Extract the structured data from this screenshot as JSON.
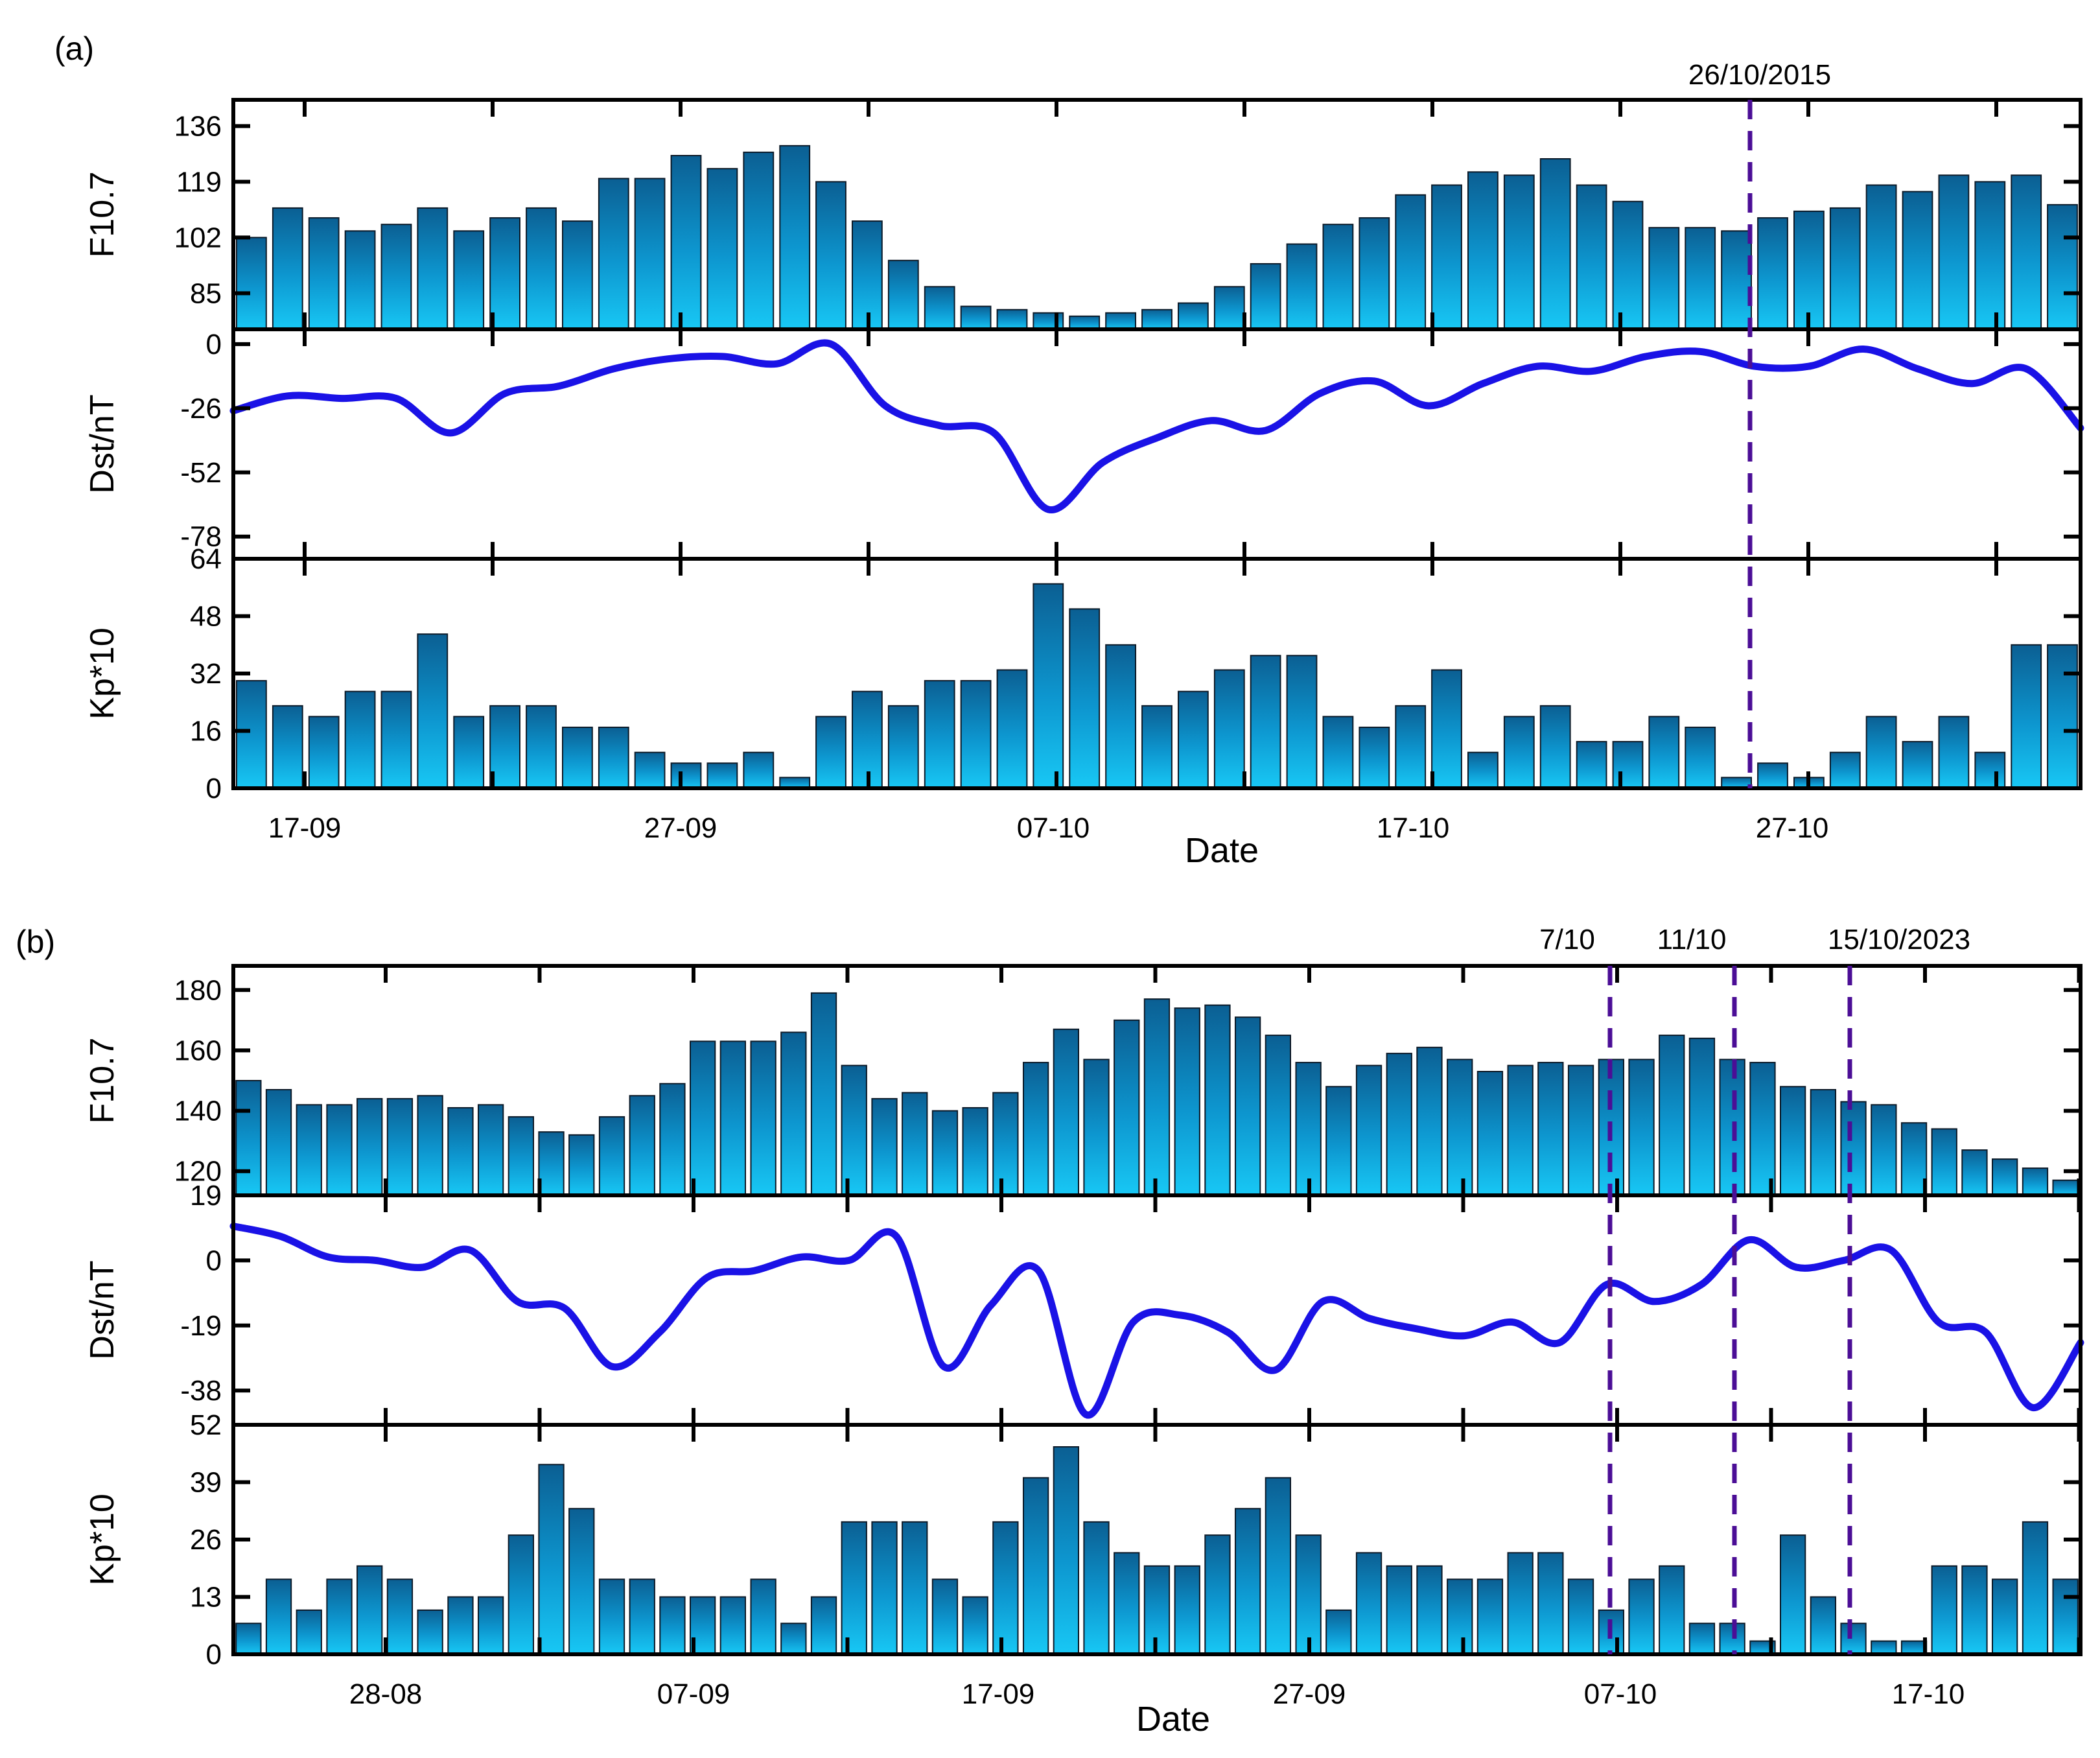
{
  "chart_data": [
    {
      "id": "a",
      "panel_label": "(a)",
      "type": "bar+line",
      "xlabel": "Date",
      "x_tick_labels": [
        "17-09",
        "27-09",
        "07-10",
        "17-10",
        "27-10"
      ],
      "event_labels": [
        "26/10/2015"
      ],
      "subplots": [
        {
          "name": "f107",
          "type": "bar",
          "ylabel": "F10.7",
          "ylim": [
            74,
            144
          ],
          "yticks": [
            85,
            102,
            119,
            136
          ],
          "values": [
            102,
            111,
            108,
            104,
            106,
            111,
            104,
            108,
            111,
            107,
            120,
            120,
            127,
            123,
            128,
            130,
            119,
            107,
            95,
            87,
            81,
            80,
            79,
            78,
            79,
            80,
            82,
            87,
            94,
            100,
            106,
            108,
            115,
            118,
            122,
            121,
            126,
            118,
            113,
            105,
            105,
            104,
            108,
            110,
            111,
            118,
            116,
            121,
            119,
            121,
            112
          ]
        },
        {
          "name": "dst",
          "type": "line",
          "ylabel": "Dst/nT",
          "ylim": [
            -87,
            6
          ],
          "yticks": [
            0,
            -26,
            -52,
            -78
          ],
          "values": [
            -27,
            -21,
            -22,
            -22,
            -36,
            -20,
            -17,
            -10,
            -6,
            -5,
            -8,
            0,
            -25,
            -33,
            -36,
            -67,
            -48,
            -38,
            -31,
            -35,
            -20,
            -15,
            -25,
            -16,
            -9,
            -11,
            -5,
            -3,
            -9,
            -9,
            -2,
            -10,
            -16,
            -10,
            -34
          ]
        },
        {
          "name": "kp",
          "type": "bar",
          "ylabel": "Kp*10",
          "ylim": [
            0,
            64
          ],
          "yticks": [
            0,
            16,
            32,
            48,
            64
          ],
          "values": [
            30,
            23,
            20,
            27,
            27,
            43,
            20,
            23,
            23,
            17,
            17,
            10,
            7,
            7,
            10,
            3,
            20,
            27,
            23,
            30,
            30,
            33,
            57,
            50,
            40,
            23,
            27,
            33,
            37,
            37,
            20,
            17,
            23,
            33,
            10,
            20,
            23,
            13,
            13,
            20,
            17,
            3,
            7,
            3,
            10,
            20,
            13,
            20,
            10,
            40,
            40
          ]
        }
      ]
    },
    {
      "id": "b",
      "panel_label": "(b)",
      "type": "bar+line",
      "xlabel": "Date",
      "x_tick_labels": [
        "28-08",
        "07-09",
        "17-09",
        "27-09",
        "07-10",
        "17-10"
      ],
      "event_labels": [
        "7/10",
        "11/10",
        "15/10/2023"
      ],
      "subplots": [
        {
          "name": "f107",
          "type": "bar",
          "ylabel": "F10.7",
          "ylim": [
            112,
            188
          ],
          "yticks": [
            120,
            140,
            160,
            180
          ],
          "values": [
            150,
            147,
            142,
            142,
            144,
            144,
            145,
            141,
            142,
            138,
            133,
            132,
            138,
            145,
            149,
            163,
            163,
            163,
            166,
            179,
            155,
            144,
            146,
            140,
            141,
            146,
            156,
            167,
            157,
            170,
            177,
            174,
            175,
            171,
            165,
            156,
            148,
            155,
            159,
            161,
            157,
            153,
            155,
            156,
            155,
            157,
            157,
            165,
            164,
            157,
            156,
            148,
            147,
            143,
            142,
            136,
            134,
            127,
            124,
            121,
            117
          ]
        },
        {
          "name": "dst",
          "type": "line",
          "ylabel": "Dst/nT",
          "ylim": [
            -48,
            19
          ],
          "yticks": [
            19,
            0,
            -19,
            -38
          ],
          "values": [
            10,
            7,
            1,
            0,
            -2,
            3,
            -12,
            -14,
            -31,
            -21,
            -5,
            -3,
            1,
            0,
            7,
            -31,
            -13,
            -3,
            -45,
            -18,
            -16,
            -21,
            -32,
            -12,
            -17,
            -20,
            -22,
            -18,
            -24,
            -7,
            -12,
            -7,
            6,
            -2,
            0,
            3,
            -18,
            -21,
            -43,
            -24
          ]
        },
        {
          "name": "kp",
          "type": "bar",
          "ylabel": "Kp*10",
          "ylim": [
            0,
            52
          ],
          "yticks": [
            0,
            13,
            26,
            39,
            52
          ],
          "values": [
            7,
            17,
            10,
            17,
            20,
            17,
            10,
            13,
            13,
            27,
            43,
            33,
            17,
            17,
            13,
            13,
            13,
            17,
            7,
            13,
            30,
            30,
            30,
            17,
            13,
            30,
            40,
            47,
            30,
            23,
            20,
            20,
            27,
            33,
            40,
            27,
            10,
            23,
            20,
            20,
            17,
            17,
            23,
            23,
            17,
            10,
            17,
            20,
            7,
            7,
            3,
            27,
            13,
            7,
            3,
            3,
            20,
            20,
            17,
            30,
            17
          ]
        }
      ]
    }
  ]
}
